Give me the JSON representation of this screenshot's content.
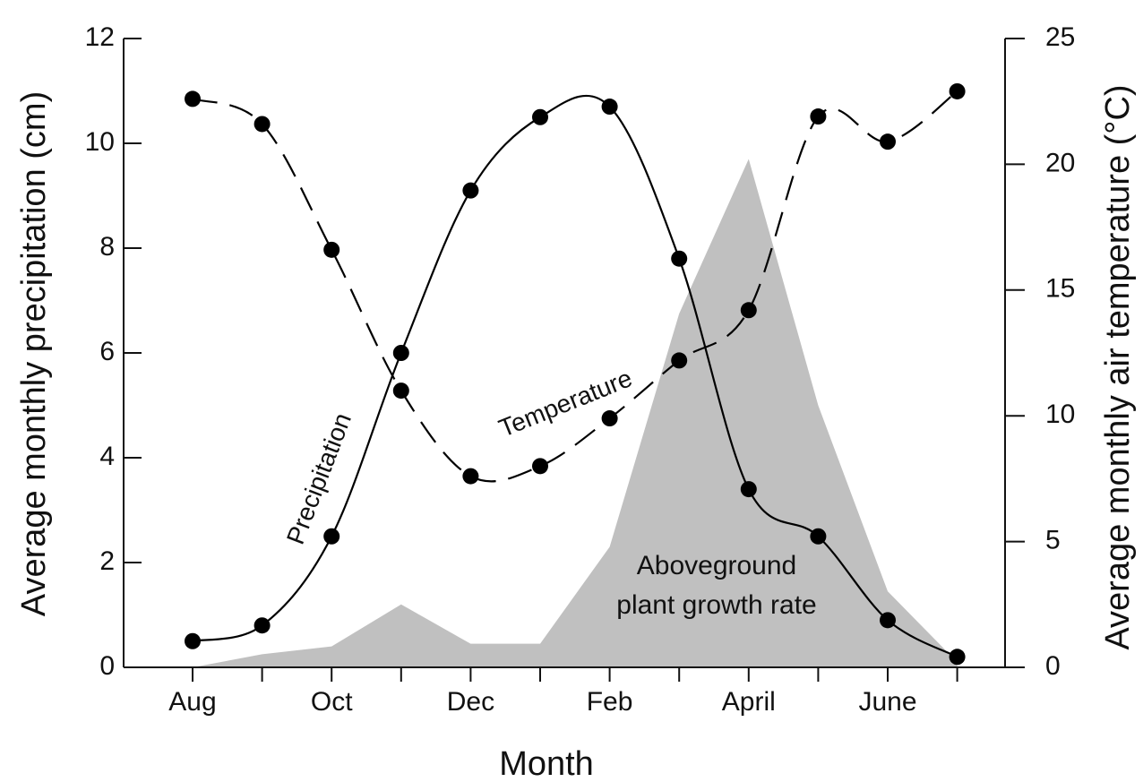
{
  "chart_data": {
    "type": "line",
    "xlabel": "Month",
    "ylabel": "Average monthly precipitation (cm)",
    "y2label": "Average monthly air temperature (°C)",
    "categories": [
      "Aug",
      null,
      "Oct",
      null,
      "Dec",
      null,
      "Feb",
      null,
      "April",
      null,
      "June",
      null
    ],
    "ylim": [
      0,
      12
    ],
    "yticks": [
      0,
      2,
      4,
      6,
      8,
      10,
      12
    ],
    "y2lim": [
      0,
      25
    ],
    "y2ticks": [
      0,
      5,
      10,
      15,
      20,
      25
    ],
    "series": [
      {
        "name": "Aboveground plant growth rate",
        "type": "area",
        "color": "#c0c0c0",
        "values": [
          0,
          0.25,
          0.4,
          1.2,
          0.45,
          0.45,
          2.3,
          6.75,
          9.7,
          5.0,
          1.45,
          0.1
        ]
      },
      {
        "name": "Precipitation",
        "type": "line",
        "color": "#000000",
        "line_style": "solid",
        "values": [
          0.5,
          0.8,
          2.5,
          6.0,
          9.1,
          10.5,
          10.7,
          7.8,
          3.4,
          2.5,
          0.9,
          0.2
        ]
      },
      {
        "name": "Temperature",
        "type": "line",
        "color": "#000000",
        "line_style": "dashed",
        "axis": "y2",
        "values": [
          22.6,
          21.6,
          16.6,
          11.0,
          7.6,
          8.0,
          9.9,
          12.2,
          14.2,
          21.9,
          20.9,
          22.9
        ]
      }
    ]
  }
}
